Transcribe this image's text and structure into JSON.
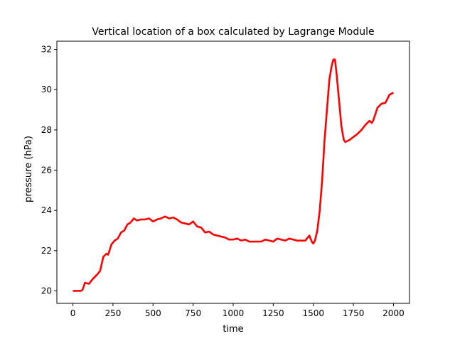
{
  "chart_data": {
    "type": "line",
    "title": "Vertical location of a box calculated by Lagrange Module",
    "x_label": "time",
    "y_label": "pressure (hPa)",
    "xlim": [
      -100,
      2100
    ],
    "ylim": [
      19.38,
      32.41
    ],
    "xticks": [
      0,
      250,
      500,
      750,
      1000,
      1250,
      1500,
      1750,
      2000
    ],
    "yticks": [
      20,
      22,
      24,
      26,
      28,
      30,
      32
    ],
    "series": [
      {
        "color": "#ff0000",
        "x": [
          0,
          25,
          50,
          60,
          75,
          100,
          125,
          150,
          170,
          190,
          210,
          220,
          240,
          260,
          280,
          300,
          320,
          340,
          360,
          380,
          400,
          425,
          450,
          475,
          500,
          525,
          550,
          575,
          600,
          625,
          650,
          675,
          700,
          725,
          750,
          775,
          800,
          825,
          850,
          875,
          900,
          925,
          950,
          975,
          1000,
          1025,
          1050,
          1075,
          1100,
          1125,
          1150,
          1175,
          1200,
          1225,
          1250,
          1275,
          1300,
          1325,
          1350,
          1375,
          1400,
          1425,
          1450,
          1475,
          1490,
          1500,
          1510,
          1525,
          1540,
          1555,
          1570,
          1585,
          1600,
          1615,
          1625,
          1635,
          1645,
          1660,
          1675,
          1690,
          1700,
          1725,
          1750,
          1775,
          1800,
          1825,
          1850,
          1865,
          1875,
          1900,
          1925,
          1950,
          1975,
          2000
        ],
        "values": [
          20.0,
          20.0,
          20.0,
          20.05,
          20.4,
          20.35,
          20.6,
          20.8,
          21.0,
          21.7,
          21.85,
          21.8,
          22.3,
          22.5,
          22.6,
          22.9,
          23.0,
          23.3,
          23.4,
          23.6,
          23.5,
          23.55,
          23.55,
          23.6,
          23.45,
          23.55,
          23.6,
          23.7,
          23.6,
          23.65,
          23.55,
          23.4,
          23.35,
          23.3,
          23.45,
          23.2,
          23.15,
          22.9,
          22.95,
          22.8,
          22.75,
          22.7,
          22.65,
          22.55,
          22.55,
          22.6,
          22.5,
          22.55,
          22.45,
          22.45,
          22.45,
          22.45,
          22.55,
          22.5,
          22.45,
          22.6,
          22.55,
          22.5,
          22.6,
          22.55,
          22.5,
          22.5,
          22.5,
          22.75,
          22.45,
          22.35,
          22.5,
          23.0,
          24.0,
          25.5,
          27.5,
          29.0,
          30.5,
          31.2,
          31.5,
          31.5,
          30.8,
          29.5,
          28.2,
          27.5,
          27.4,
          27.5,
          27.65,
          27.8,
          28.0,
          28.25,
          28.45,
          28.35,
          28.5,
          29.1,
          29.3,
          29.35,
          29.75,
          29.85
        ]
      }
    ]
  }
}
